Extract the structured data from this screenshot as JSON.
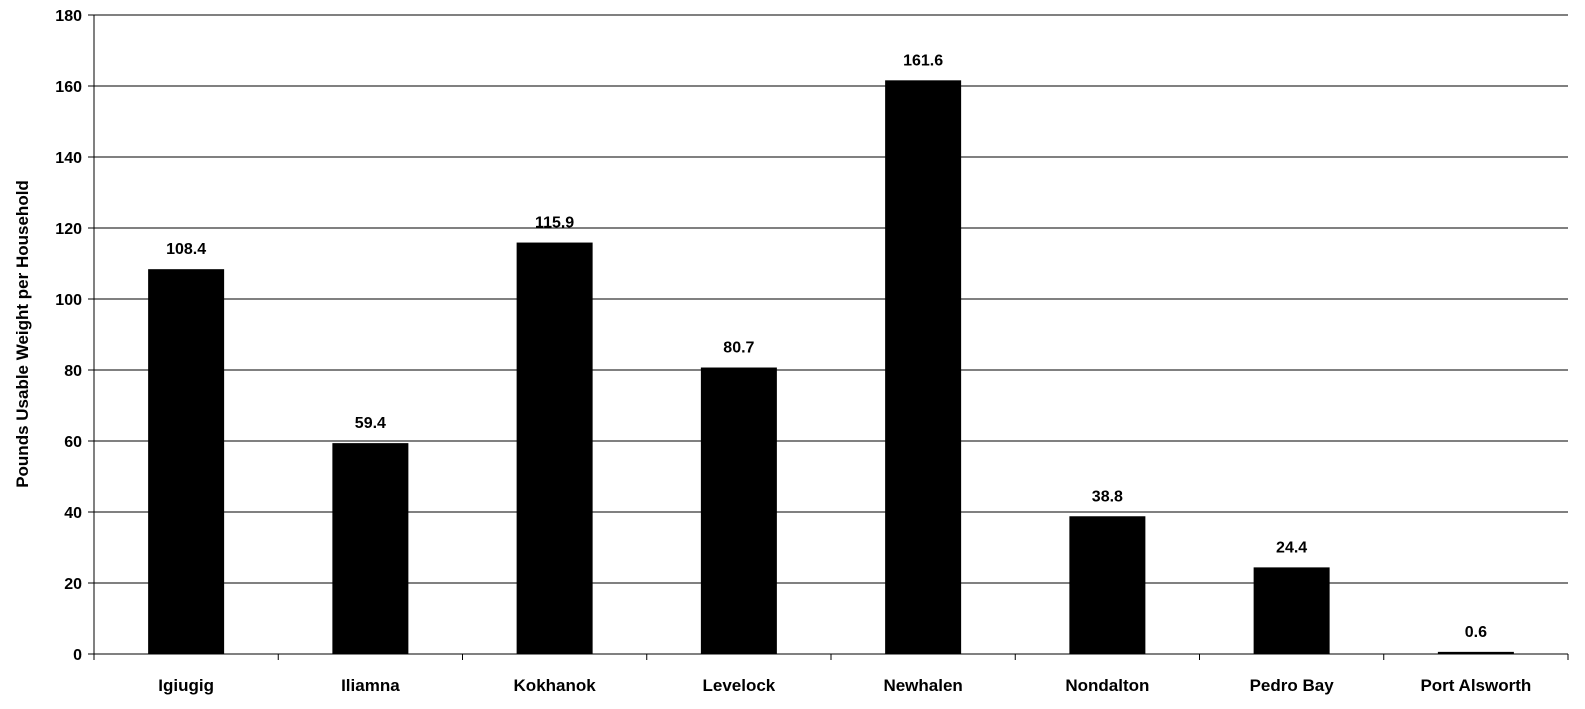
{
  "chart_data": {
    "type": "bar",
    "ylabel": "Pounds Usable Weight per Household",
    "xlabel": "",
    "ylim": [
      0,
      180
    ],
    "ytick_step": 20,
    "grid": true,
    "categories": [
      "Igiugig",
      "Iliamna",
      "Kokhanok",
      "Levelock",
      "Newhalen",
      "Nondalton",
      "Pedro Bay",
      "Port Alsworth"
    ],
    "values": [
      108.4,
      59.4,
      115.9,
      80.7,
      161.6,
      38.8,
      24.4,
      0.6
    ],
    "data_labels": [
      "108.4",
      "59.4",
      "115.9",
      "80.7",
      "161.6",
      "38.8",
      "24.4",
      "0.6"
    ],
    "bar_color": "#000000"
  }
}
